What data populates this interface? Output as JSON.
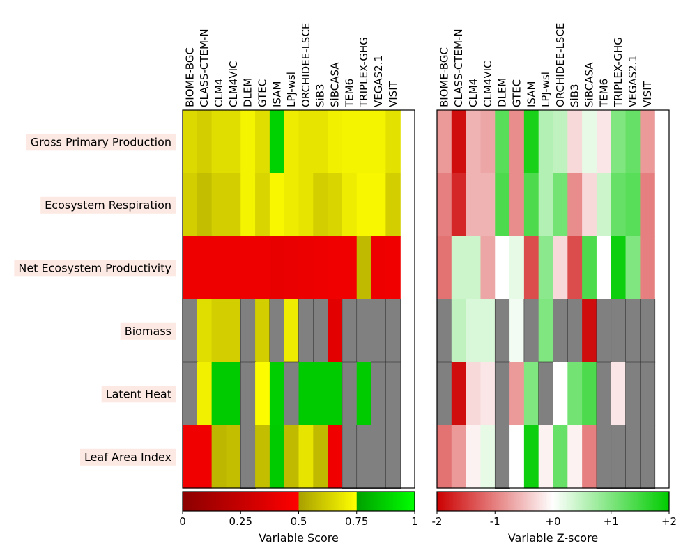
{
  "chart_data": [
    {
      "type": "heatmap",
      "title": "",
      "models": [
        "BIOME-BGC",
        "CLASS-CTEM-N",
        "CLM4",
        "CLM4VIC",
        "DLEM",
        "GTEC",
        "ISAM",
        "LPJ-wsl",
        "ORCHIDEE-LSCE",
        "SiB3",
        "SiBCASA",
        "TEM6",
        "TRIPLEX-GHG",
        "VEGAS2.1",
        "VISIT"
      ],
      "variables": [
        "Gross Primary Production",
        "Ecosystem Respiration",
        "Net Ecosystem Productivity",
        "Biomass",
        "Latent Heat",
        "Leaf Area Index"
      ],
      "values": [
        [
          0.65,
          0.62,
          0.66,
          0.66,
          0.72,
          0.66,
          0.88,
          0.7,
          0.68,
          0.68,
          0.71,
          0.72,
          0.72,
          0.72,
          0.67
        ],
        [
          0.62,
          0.58,
          0.62,
          0.62,
          0.72,
          0.64,
          0.73,
          0.7,
          0.68,
          0.62,
          0.64,
          0.7,
          0.73,
          0.73,
          0.62
        ],
        [
          0.43,
          0.43,
          0.43,
          0.43,
          0.43,
          0.43,
          0.4,
          0.41,
          0.42,
          0.43,
          0.44,
          0.44,
          0.57,
          0.43,
          0.44
        ],
        [
          null,
          0.66,
          0.62,
          0.62,
          null,
          0.62,
          null,
          0.7,
          null,
          null,
          0.38,
          null,
          null,
          null,
          null
        ],
        [
          null,
          0.71,
          0.86,
          0.86,
          null,
          0.74,
          0.87,
          null,
          0.86,
          0.86,
          0.86,
          null,
          0.86,
          null,
          null
        ],
        [
          0.44,
          0.44,
          0.56,
          0.58,
          null,
          0.58,
          0.86,
          0.57,
          0.68,
          0.57,
          0.44,
          null,
          null,
          null,
          null
        ]
      ],
      "extra_column_blank": true,
      "colorbar": {
        "label": "Variable Score",
        "ticks": [
          "0",
          "0.25",
          "0.5",
          "0.75",
          "1"
        ],
        "range": [
          0,
          1
        ]
      }
    },
    {
      "type": "heatmap",
      "title": "",
      "models": [
        "BIOME-BGC",
        "CLASS-CTEM-N",
        "CLM4",
        "CLM4VIC",
        "DLEM",
        "GTEC",
        "ISAM",
        "LPJ-wsl",
        "ORCHIDEE-LSCE",
        "SiB3",
        "SiBCASA",
        "TEM6",
        "TRIPLEX-GHG",
        "VEGAS2.1",
        "VISIT"
      ],
      "variables": [
        "Gross Primary Production",
        "Ecosystem Respiration",
        "Net Ecosystem Productivity",
        "Biomass",
        "Latent Heat",
        "Leaf Area Index"
      ],
      "values": [
        [
          -0.8,
          -1.9,
          -0.6,
          -0.7,
          1.3,
          -0.9,
          1.8,
          0.6,
          0.5,
          -0.3,
          0.2,
          -0.2,
          1.0,
          1.2,
          -0.8
        ],
        [
          -1.0,
          -1.7,
          -0.6,
          -0.6,
          1.4,
          -0.9,
          1.4,
          0.6,
          1.1,
          -0.9,
          -0.3,
          0.4,
          1.2,
          1.3,
          -1.0
        ],
        [
          -1.1,
          0.4,
          0.4,
          -0.7,
          0.0,
          0.2,
          -1.4,
          0.9,
          -0.3,
          -1.4,
          1.4,
          0.0,
          1.9,
          1.0,
          -1.0
        ],
        [
          null,
          0.5,
          0.3,
          0.3,
          null,
          0.1,
          null,
          1.0,
          null,
          null,
          -1.9,
          null,
          null,
          null,
          null
        ],
        [
          null,
          -1.9,
          -0.3,
          -0.2,
          null,
          -0.8,
          1.0,
          null,
          0.0,
          1.1,
          1.4,
          null,
          -0.2,
          null,
          null
        ],
        [
          -1.1,
          -0.8,
          -0.1,
          0.2,
          null,
          0.0,
          1.9,
          -0.1,
          1.2,
          -0.1,
          -1.0,
          null,
          null,
          null,
          null
        ]
      ],
      "extra_column_blank": true,
      "colorbar": {
        "label": "Variable Z-score",
        "ticks": [
          "-2",
          "-1",
          "+0",
          "+1",
          "+2"
        ],
        "range": [
          -2,
          2
        ]
      }
    }
  ]
}
